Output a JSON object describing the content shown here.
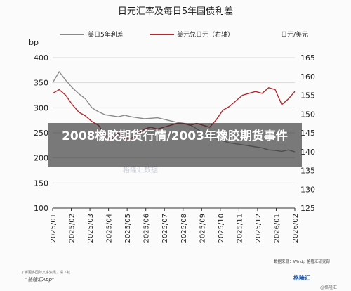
{
  "chart_data": {
    "type": "line",
    "title": "日元汇率及每日5年国债利差",
    "left_axis_label": "bp",
    "right_axis_label": "日元/美元",
    "left_ylim": [
      100,
      400
    ],
    "left_ticks": [
      100,
      150,
      200,
      250,
      300,
      350,
      400
    ],
    "right_ylim": [
      125,
      165
    ],
    "right_ticks": [
      125,
      130,
      135,
      140,
      145,
      150,
      155,
      160,
      165
    ],
    "x_ticks": [
      "2025/01",
      "2025/02",
      "2025/03",
      "2025/04",
      "2025/05",
      "2025/06",
      "2025/07",
      "2025/08",
      "2025/09",
      "2025/10",
      "2025/11",
      "2025/12",
      "2026/01",
      "2026/02"
    ],
    "grid": true,
    "legend_position": "top",
    "series": [
      {
        "name": "美日5年利差",
        "axis": "left",
        "color": "#8a8a8a",
        "values": [
          350,
          372,
          355,
          340,
          328,
          318,
          300,
          292,
          286,
          284,
          282,
          285,
          282,
          280,
          278,
          279,
          280,
          277,
          274,
          271,
          269,
          266,
          258,
          250,
          244,
          238,
          234,
          230,
          228,
          226,
          224,
          222,
          220,
          216,
          215,
          213,
          216,
          212
        ]
      },
      {
        "name": "美元兑日元（右轴）",
        "axis": "right",
        "color": "#b22a2f",
        "values": [
          155.5,
          156.5,
          155.0,
          152.5,
          150.5,
          149.5,
          148.0,
          147.0,
          144.5,
          143.0,
          145.0,
          143.5,
          143.5,
          144.5,
          146.0,
          146.5,
          146.0,
          146.5,
          147.0,
          147.5,
          147.5,
          147.0,
          147.5,
          147.0,
          146.5,
          148.5,
          151.0,
          152.0,
          153.5,
          155.0,
          155.5,
          156.0,
          155.5,
          157.0,
          156.5,
          152.5,
          154.0,
          156.0
        ]
      }
    ]
  },
  "overlay": {
    "text": "2008橡胶期货行情/2003年橡胶期货事件"
  },
  "footer": {
    "source": "数据来源：Wind，格隆汇研究部",
    "note": "了解更多国际文字资讯，请下载",
    "app": "\"格隆汇App\"",
    "logo": "格隆汇",
    "stamp": "@格隆汇"
  },
  "watermark": "格隆汇数据"
}
